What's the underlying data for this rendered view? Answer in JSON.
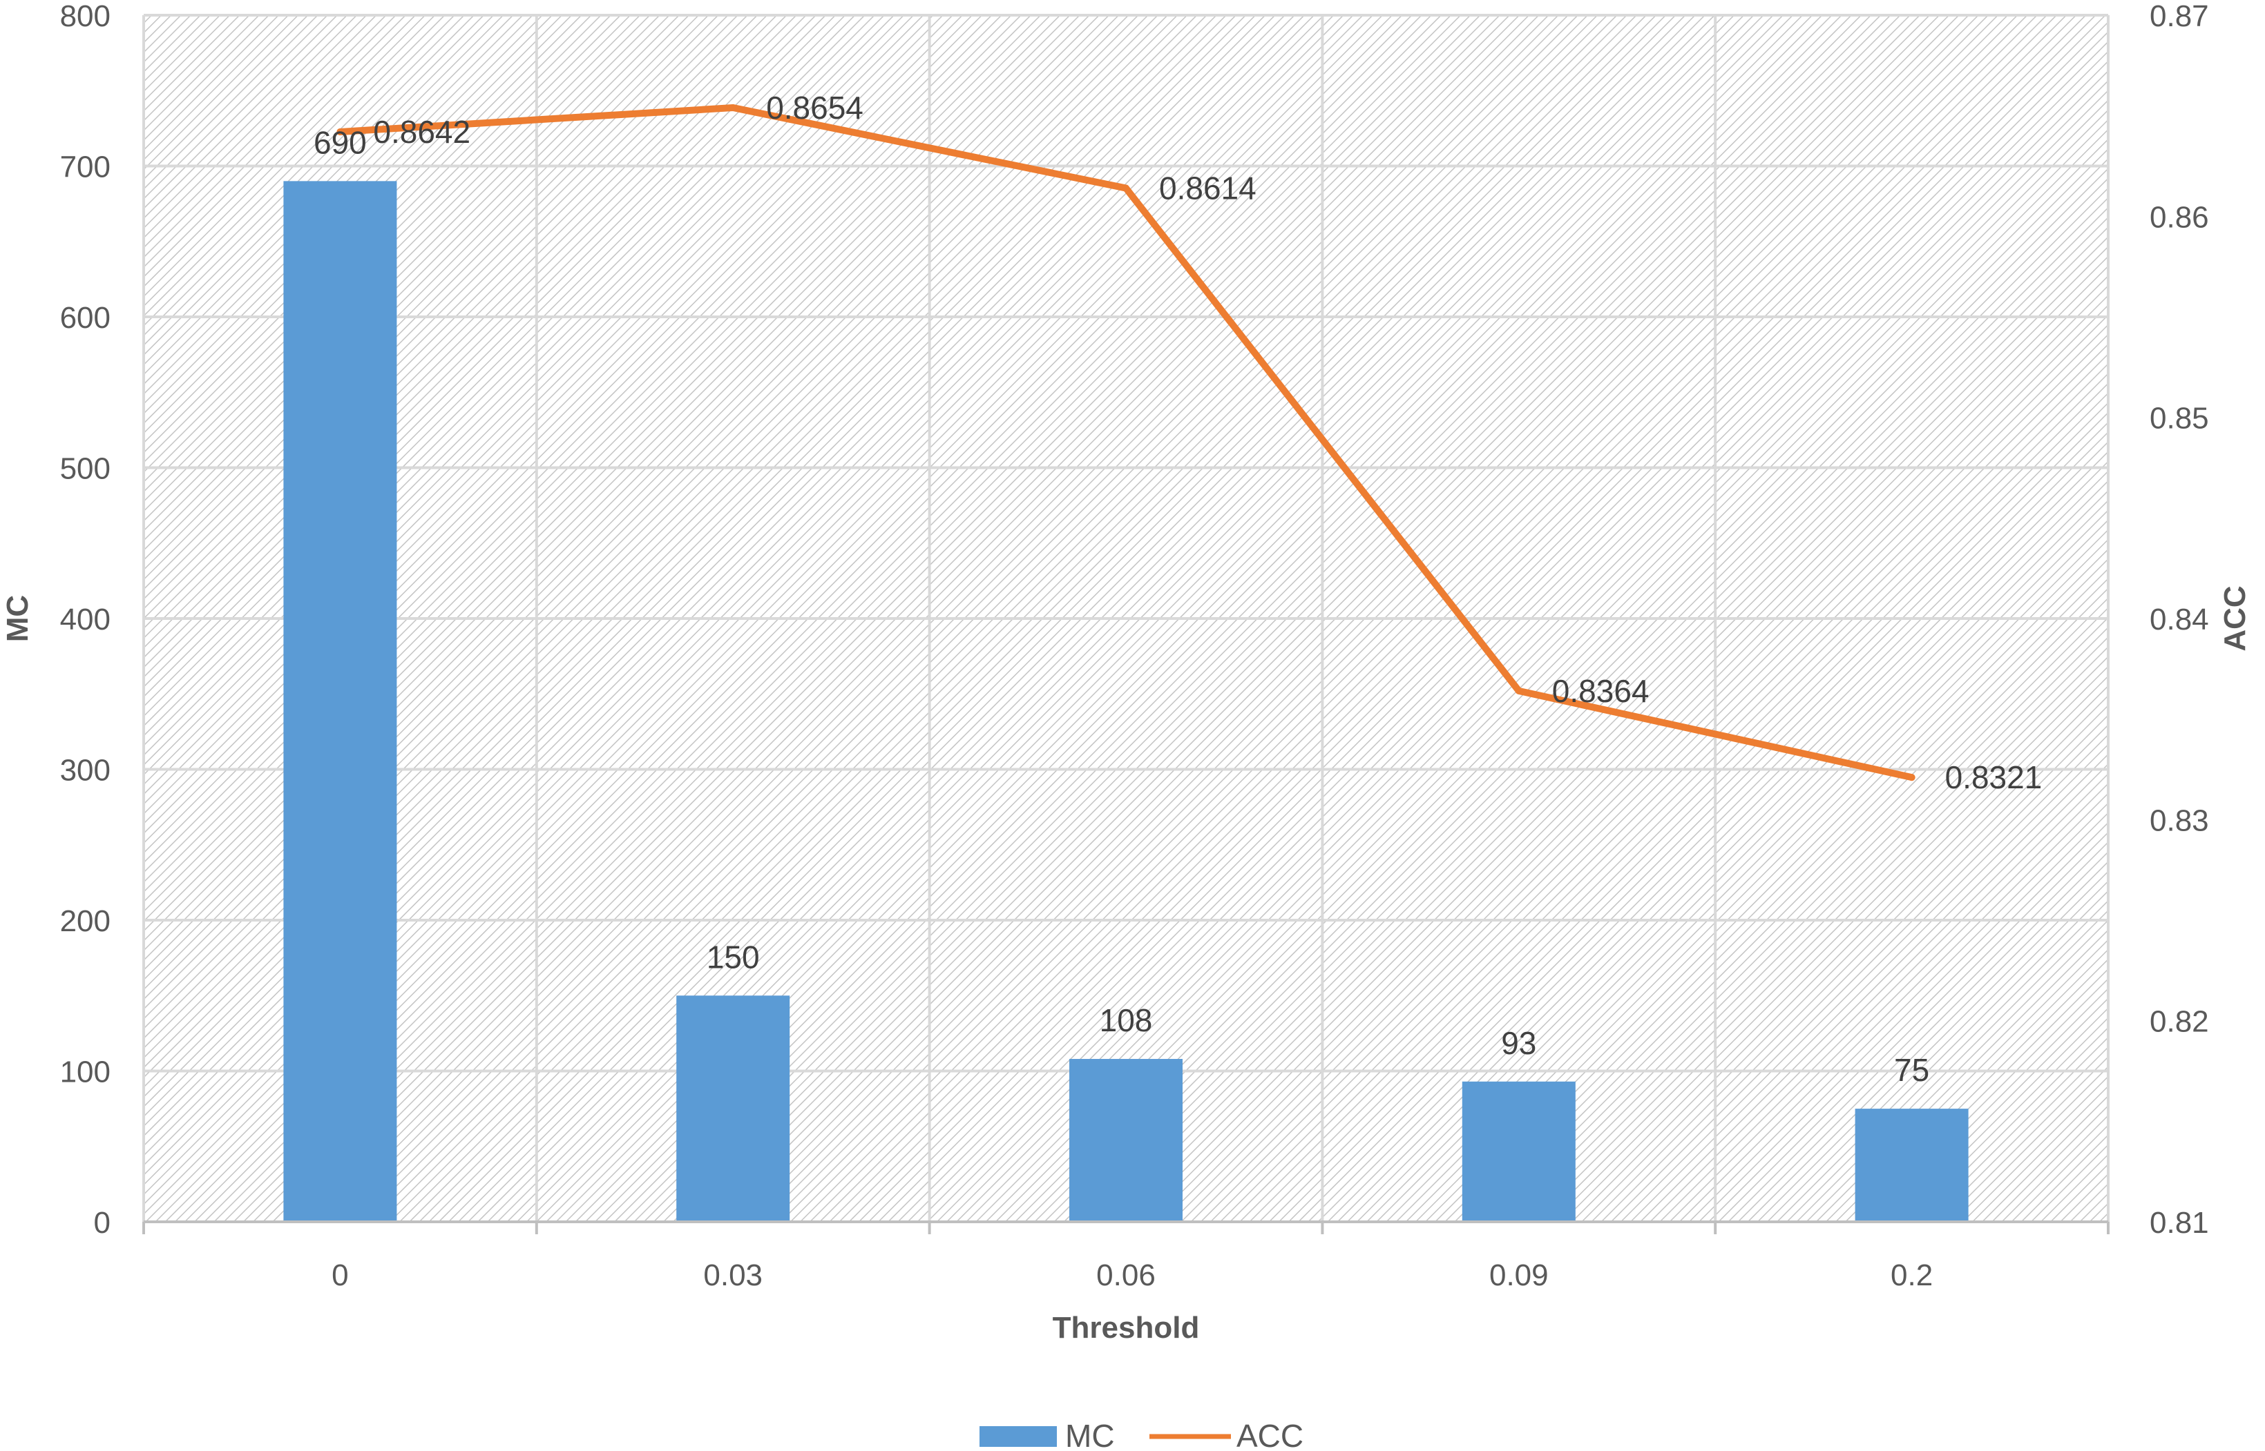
{
  "chart_data": {
    "type": "bar",
    "title": "",
    "xlabel": "Threshold",
    "ylabel": "MC",
    "y2label": "ACC",
    "categories": [
      "0",
      "0.03",
      "0.06",
      "0.09",
      "0.2"
    ],
    "series": [
      {
        "name": "MC",
        "type": "bar",
        "axis": "left",
        "color": "#5B9BD5",
        "values": [
          690,
          150,
          108,
          93,
          75
        ]
      },
      {
        "name": "ACC",
        "type": "line",
        "axis": "right",
        "color": "#ED7D31",
        "values": [
          0.8642,
          0.8654,
          0.8614,
          0.8364,
          0.8321
        ]
      }
    ],
    "ylim": [
      0,
      800
    ],
    "y_ticks": [
      "0",
      "100",
      "200",
      "300",
      "400",
      "500",
      "600",
      "700",
      "800"
    ],
    "y2lim": [
      0.81,
      0.87
    ],
    "y2_ticks": [
      "0.81",
      "0.82",
      "0.83",
      "0.84",
      "0.85",
      "0.86",
      "0.87"
    ],
    "bar_labels": [
      "690",
      "150",
      "108",
      "93",
      "75"
    ],
    "line_labels": [
      "0.8642",
      "0.8654",
      "0.8614",
      "0.8364",
      "0.8321"
    ],
    "grid": true,
    "legend": "bottom",
    "gridline_color": "#D9D9D9",
    "plot_background": "hatched"
  }
}
